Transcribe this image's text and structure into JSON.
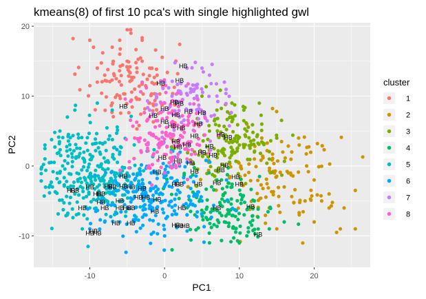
{
  "chart_data": {
    "type": "scatter",
    "title": "kmeans(8) of first 10 pca's with single highlighted gwl",
    "xlabel": "PC1",
    "ylabel": "PC2",
    "xlim": [
      -17.5,
      27.5
    ],
    "ylim": [
      -14.5,
      20.5
    ],
    "x_ticks": [
      -10,
      0,
      10,
      20
    ],
    "y_ticks": [
      -10,
      0,
      10,
      20
    ],
    "x_tick_labels": [
      "-10",
      "0",
      "10",
      "20"
    ],
    "y_tick_labels": [
      "-10",
      "0",
      "10",
      "20"
    ],
    "grid": true,
    "panel_background": "#ebebeb",
    "legend": {
      "title": "cluster",
      "position": "right",
      "entries": [
        "1",
        "2",
        "3",
        "4",
        "5",
        "6",
        "7",
        "8"
      ]
    },
    "colors": {
      "1": "#F8766D",
      "2": "#CD9600",
      "3": "#7CAE00",
      "4": "#00BE67",
      "5": "#00BFC4",
      "6": "#00A9FF",
      "7": "#C77CFF",
      "8": "#FF61CC"
    },
    "series": [
      {
        "name": "1",
        "center": [
          -4.5,
          12.0
        ],
        "spread": [
          3.2,
          3.2
        ],
        "n": 110,
        "points": [
          [
            -10,
            18
          ],
          [
            -9.5,
            17
          ],
          [
            -5,
            19.5
          ],
          [
            -4.5,
            19
          ],
          [
            -7,
            17
          ],
          [
            -6,
            18
          ],
          [
            -3,
            15
          ],
          [
            -2,
            14
          ],
          [
            -8,
            13
          ],
          [
            -6,
            10
          ],
          [
            -9,
            12
          ],
          [
            -4,
            11
          ],
          [
            -2,
            9
          ],
          [
            -7,
            9
          ],
          [
            -10,
            11.5
          ],
          [
            -5,
            15
          ],
          [
            -9,
            14
          ],
          [
            -3,
            18
          ],
          [
            -1,
            13
          ],
          [
            -6,
            16
          ]
        ]
      },
      {
        "name": "2",
        "center": [
          15.0,
          -1.5
        ],
        "spread": [
          4.2,
          3.6
        ],
        "n": 120,
        "points": [
          [
            25.5,
            -3.5
          ],
          [
            25.5,
            -9
          ],
          [
            23.5,
            -9
          ],
          [
            23,
            -9.5
          ],
          [
            22,
            -6
          ],
          [
            20,
            -8
          ],
          [
            21,
            -5
          ],
          [
            18,
            -7
          ],
          [
            15,
            -9
          ],
          [
            24,
            -6
          ],
          [
            17,
            2
          ],
          [
            19,
            0
          ],
          [
            13,
            4
          ],
          [
            16,
            -3
          ],
          [
            12,
            1
          ],
          [
            14,
            -6
          ],
          [
            11,
            6
          ],
          [
            18,
            3
          ],
          [
            20,
            -2
          ],
          [
            22,
            -4
          ]
        ]
      },
      {
        "name": "3",
        "center": [
          9.0,
          3.5
        ],
        "spread": [
          3.2,
          2.8
        ],
        "n": 150,
        "points": [
          [
            5,
            10
          ],
          [
            7,
            8
          ],
          [
            9,
            7
          ],
          [
            11,
            5
          ],
          [
            13,
            6
          ],
          [
            15,
            4
          ],
          [
            4,
            2
          ],
          [
            8,
            0
          ],
          [
            10,
            3
          ],
          [
            12,
            2
          ],
          [
            6,
            5
          ],
          [
            14,
            1
          ],
          [
            9,
            9
          ]
        ]
      },
      {
        "name": "4",
        "center": [
          8.5,
          -6.0
        ],
        "spread": [
          3.2,
          2.6
        ],
        "n": 130,
        "points": [
          [
            1,
            -12
          ],
          [
            6,
            -11
          ],
          [
            10,
            -11
          ],
          [
            14,
            -9
          ],
          [
            16,
            -8
          ],
          [
            7,
            -2
          ],
          [
            4,
            -4
          ],
          [
            9,
            -3
          ],
          [
            12,
            -5
          ],
          [
            3,
            -7
          ],
          [
            8,
            -8
          ],
          [
            11,
            -10
          ]
        ]
      },
      {
        "name": "5",
        "center": [
          -9.5,
          -1.0
        ],
        "spread": [
          3.6,
          3.2
        ],
        "n": 300,
        "points": [
          [
            -16,
            3
          ],
          [
            -16,
            2.5
          ],
          [
            -14,
            5
          ],
          [
            -13,
            7
          ],
          [
            -12,
            8
          ],
          [
            -9,
            9
          ],
          [
            -7,
            8
          ],
          [
            -15,
            -3
          ],
          [
            -13,
            -7
          ],
          [
            -11,
            -9
          ],
          [
            -14,
            -1
          ],
          [
            -12,
            -4
          ],
          [
            -10,
            -6
          ],
          [
            -8,
            -3
          ],
          [
            -6,
            2
          ],
          [
            -5,
            -1
          ]
        ]
      },
      {
        "name": "6",
        "center": [
          -1.5,
          -4.5
        ],
        "spread": [
          3.8,
          2.8
        ],
        "n": 220,
        "points": [
          [
            -10,
            -9
          ],
          [
            -8,
            -8
          ],
          [
            -6,
            -8
          ],
          [
            0,
            -10
          ],
          [
            3,
            -7
          ],
          [
            5,
            -5
          ],
          [
            -3,
            -4
          ],
          [
            -1,
            -6
          ],
          [
            1,
            -3
          ],
          [
            -4,
            -2
          ],
          [
            2,
            0
          ]
        ]
      },
      {
        "name": "7",
        "center": [
          3.5,
          9.0
        ],
        "spread": [
          2.6,
          2.6
        ],
        "n": 90,
        "points": [
          [
            3,
            14
          ],
          [
            5,
            14
          ],
          [
            6,
            13
          ],
          [
            8,
            12
          ],
          [
            7,
            10
          ],
          [
            4,
            11
          ],
          [
            2,
            7
          ],
          [
            1,
            10
          ],
          [
            -2,
            8
          ],
          [
            0,
            12
          ]
        ]
      },
      {
        "name": "8",
        "center": [
          0.5,
          4.5
        ],
        "spread": [
          2.6,
          3.0
        ],
        "n": 150,
        "points": [
          [
            -3,
            12
          ],
          [
            -2,
            7
          ],
          [
            0,
            9
          ],
          [
            1,
            6
          ],
          [
            2,
            3
          ],
          [
            3,
            1
          ],
          [
            -1,
            2
          ],
          [
            -4,
            4
          ],
          [
            0,
            -1
          ],
          [
            4,
            5
          ]
        ]
      }
    ],
    "annotations": {
      "text": "HB",
      "points": [
        [
          2.5,
          14.3
        ],
        [
          -0.5,
          11.8
        ],
        [
          2,
          12.2
        ],
        [
          -5.5,
          8.5
        ],
        [
          1.3,
          9.1
        ],
        [
          2,
          8.9
        ],
        [
          0,
          8.2
        ],
        [
          3.2,
          7.8
        ],
        [
          5,
          7.6
        ],
        [
          -1.5,
          7.2
        ],
        [
          1.5,
          7.3
        ],
        [
          0,
          6.3
        ],
        [
          4.5,
          6
        ],
        [
          1,
          5.7
        ],
        [
          2.2,
          5.4
        ],
        [
          4,
          4.3
        ],
        [
          7.5,
          4.5
        ],
        [
          8.5,
          4.1
        ],
        [
          1.5,
          3.5
        ],
        [
          3,
          3
        ],
        [
          6,
          2.8
        ],
        [
          1.8,
          2.7
        ],
        [
          -0.3,
          1.2
        ],
        [
          1.8,
          0.7
        ],
        [
          3.5,
          0.4
        ],
        [
          5,
          1.9
        ],
        [
          6.5,
          1.5
        ],
        [
          8,
          0.1
        ],
        [
          7.5,
          -0.6
        ],
        [
          4,
          -0.8
        ],
        [
          -12.5,
          -3.5
        ],
        [
          -12,
          -3.5
        ],
        [
          -10,
          -3
        ],
        [
          -7,
          -3
        ],
        [
          -7.5,
          -2.9
        ],
        [
          -8.5,
          -4
        ],
        [
          -4.5,
          -3
        ],
        [
          -9,
          -4
        ],
        [
          -8.5,
          -5.2
        ],
        [
          -6,
          -5
        ],
        [
          -3.5,
          -4.5
        ],
        [
          -2.5,
          -4.5
        ],
        [
          -1,
          -4.8
        ],
        [
          -11,
          -6
        ],
        [
          -8,
          -6
        ],
        [
          -6,
          -6
        ],
        [
          -5,
          -6
        ],
        [
          -4.5,
          -6
        ],
        [
          -1.3,
          -6.5
        ],
        [
          2.3,
          -6
        ],
        [
          7,
          -6
        ],
        [
          11.5,
          -5.8
        ],
        [
          -6.5,
          -8.2
        ],
        [
          -4.5,
          -8.2
        ],
        [
          1.5,
          -8.5
        ],
        [
          2,
          -8.6
        ],
        [
          2.8,
          -8.6
        ],
        [
          -9.5,
          -9.3
        ],
        [
          -9,
          -9.6
        ],
        [
          -10,
          -9.6
        ],
        [
          12.5,
          -9.8
        ],
        [
          2,
          -2.6
        ],
        [
          4.5,
          -2.6
        ],
        [
          7,
          -2.4
        ],
        [
          9.5,
          -1.6
        ],
        [
          10,
          -2.6
        ],
        [
          -5.5,
          -1.5
        ],
        [
          -5.5,
          -2.9
        ],
        [
          -3,
          -3.2
        ],
        [
          -1,
          -0.9
        ],
        [
          1.5,
          -2.6
        ]
      ]
    }
  }
}
